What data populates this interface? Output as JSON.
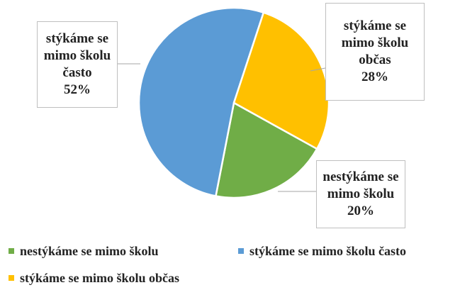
{
  "chart_data": {
    "type": "pie",
    "categories": [
      "nestýkáme se mimo školu",
      "stýkáme se mimo školu často",
      "stýkáme se mimo školu občas"
    ],
    "values": [
      20,
      52,
      28
    ],
    "value_labels": [
      "20%",
      "52%",
      "28%"
    ],
    "colors": [
      "#70ad47",
      "#5b9bd5",
      "#ffc000"
    ],
    "legend": "bottom"
  }
}
